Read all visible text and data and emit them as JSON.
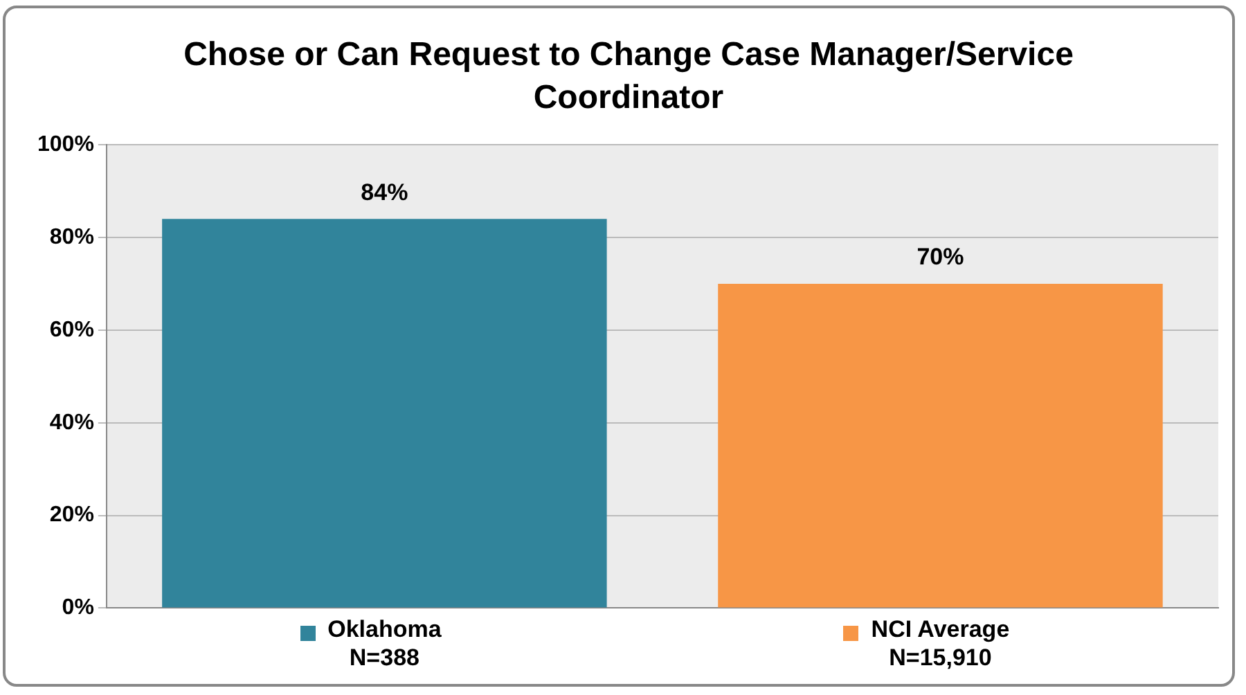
{
  "chart_data": {
    "type": "bar",
    "title": "Chose or Can Request to Change Case Manager/Service Coordinator",
    "categories": [
      "Oklahoma\nN=388",
      "NCI Average\nN=15,910"
    ],
    "values": [
      84,
      70
    ],
    "colors": [
      "#31849b",
      "#f79646"
    ],
    "ylim": [
      0,
      100
    ],
    "yticks": [
      {
        "value": 0,
        "label": "0%"
      },
      {
        "value": 20,
        "label": "20%"
      },
      {
        "value": 40,
        "label": "40%"
      },
      {
        "value": 60,
        "label": "60%"
      },
      {
        "value": 80,
        "label": "80%"
      },
      {
        "value": 100,
        "label": "100%"
      }
    ],
    "value_labels": [
      "84%",
      "70%"
    ],
    "grid": "y",
    "legend": false
  }
}
